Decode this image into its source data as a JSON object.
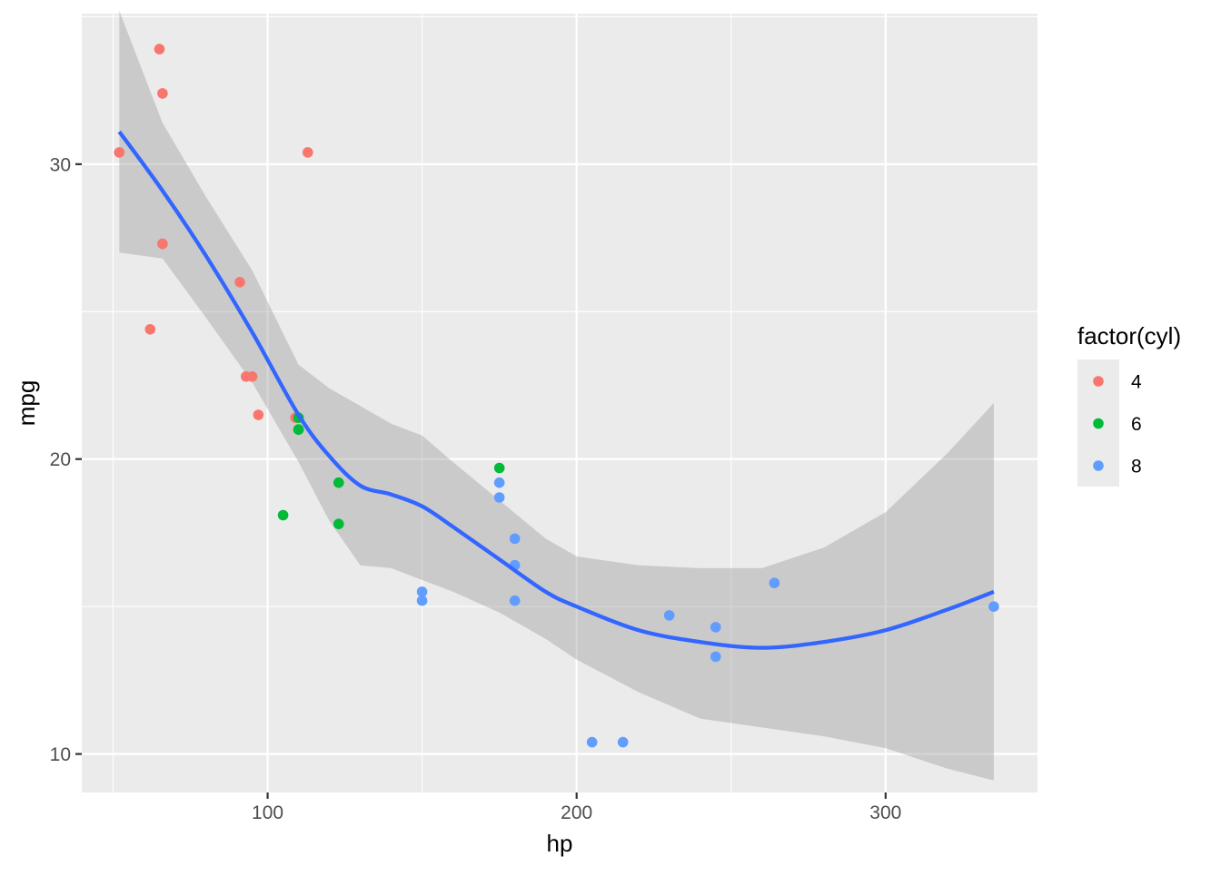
{
  "chart_data": {
    "type": "scatter",
    "title": "",
    "xlabel": "hp",
    "ylabel": "mpg",
    "xlim": [
      39.85,
      349.15
    ],
    "ylim": [
      8.695,
      35.105
    ],
    "x_ticks": [
      100,
      200,
      300
    ],
    "x_tick_labels": [
      "100",
      "200",
      "300"
    ],
    "y_ticks": [
      10,
      20,
      30
    ],
    "y_tick_labels": [
      "10",
      "20",
      "30"
    ],
    "grid": true,
    "legend": {
      "title": "factor(cyl)",
      "placement": "right",
      "entries": [
        {
          "label": "4",
          "color": "#F8766D"
        },
        {
          "label": "6",
          "color": "#00BA38"
        },
        {
          "label": "8",
          "color": "#619CFF"
        }
      ]
    },
    "series": [
      {
        "name": "4",
        "color": "#F8766D",
        "points": [
          {
            "x": 93,
            "y": 22.8
          },
          {
            "x": 62,
            "y": 24.4
          },
          {
            "x": 95,
            "y": 22.8
          },
          {
            "x": 66,
            "y": 32.4
          },
          {
            "x": 52,
            "y": 30.4
          },
          {
            "x": 65,
            "y": 33.9
          },
          {
            "x": 97,
            "y": 21.5
          },
          {
            "x": 66,
            "y": 27.3
          },
          {
            "x": 91,
            "y": 26.0
          },
          {
            "x": 113,
            "y": 30.4
          },
          {
            "x": 109,
            "y": 21.4
          }
        ]
      },
      {
        "name": "6",
        "color": "#00BA38",
        "points": [
          {
            "x": 110,
            "y": 21.0
          },
          {
            "x": 110,
            "y": 21.0
          },
          {
            "x": 110,
            "y": 21.4
          },
          {
            "x": 105,
            "y": 18.1
          },
          {
            "x": 123,
            "y": 19.2
          },
          {
            "x": 123,
            "y": 17.8
          },
          {
            "x": 175,
            "y": 19.7
          }
        ]
      },
      {
        "name": "8",
        "color": "#619CFF",
        "points": [
          {
            "x": 175,
            "y": 18.7
          },
          {
            "x": 245,
            "y": 14.3
          },
          {
            "x": 180,
            "y": 16.4
          },
          {
            "x": 180,
            "y": 17.3
          },
          {
            "x": 180,
            "y": 15.2
          },
          {
            "x": 205,
            "y": 10.4
          },
          {
            "x": 215,
            "y": 10.4
          },
          {
            "x": 230,
            "y": 14.7
          },
          {
            "x": 150,
            "y": 15.5
          },
          {
            "x": 150,
            "y": 15.2
          },
          {
            "x": 245,
            "y": 13.3
          },
          {
            "x": 175,
            "y": 19.2
          },
          {
            "x": 264,
            "y": 15.8
          },
          {
            "x": 335,
            "y": 15.0
          }
        ]
      }
    ],
    "smooth": {
      "method": "loess",
      "line_color": "#3366FF",
      "band_color": "#999999",
      "points": [
        {
          "x": 52,
          "fit": 31.1,
          "lower": 27.0,
          "upper": 35.2
        },
        {
          "x": 66,
          "fit": 29.1,
          "lower": 26.8,
          "upper": 31.4
        },
        {
          "x": 80,
          "fit": 26.9,
          "lower": 24.8,
          "upper": 28.9
        },
        {
          "x": 95,
          "fit": 24.3,
          "lower": 22.6,
          "upper": 26.4
        },
        {
          "x": 110,
          "fit": 21.5,
          "lower": 19.9,
          "upper": 23.2
        },
        {
          "x": 120,
          "fit": 20.1,
          "lower": 17.9,
          "upper": 22.4
        },
        {
          "x": 130,
          "fit": 19.1,
          "lower": 16.4,
          "upper": 21.8
        },
        {
          "x": 140,
          "fit": 18.8,
          "lower": 16.3,
          "upper": 21.2
        },
        {
          "x": 150,
          "fit": 18.4,
          "lower": 15.9,
          "upper": 20.8
        },
        {
          "x": 160,
          "fit": 17.7,
          "lower": 15.5,
          "upper": 19.9
        },
        {
          "x": 175,
          "fit": 16.6,
          "lower": 14.8,
          "upper": 18.6
        },
        {
          "x": 190,
          "fit": 15.5,
          "lower": 13.9,
          "upper": 17.3
        },
        {
          "x": 200,
          "fit": 15.0,
          "lower": 13.2,
          "upper": 16.7
        },
        {
          "x": 220,
          "fit": 14.2,
          "lower": 12.1,
          "upper": 16.4
        },
        {
          "x": 240,
          "fit": 13.8,
          "lower": 11.2,
          "upper": 16.3
        },
        {
          "x": 260,
          "fit": 13.6,
          "lower": 10.9,
          "upper": 16.3
        },
        {
          "x": 280,
          "fit": 13.8,
          "lower": 10.6,
          "upper": 17.0
        },
        {
          "x": 300,
          "fit": 14.2,
          "lower": 10.2,
          "upper": 18.2
        },
        {
          "x": 320,
          "fit": 14.9,
          "lower": 9.5,
          "upper": 20.2
        },
        {
          "x": 335,
          "fit": 15.5,
          "lower": 9.1,
          "upper": 21.9
        }
      ]
    }
  }
}
